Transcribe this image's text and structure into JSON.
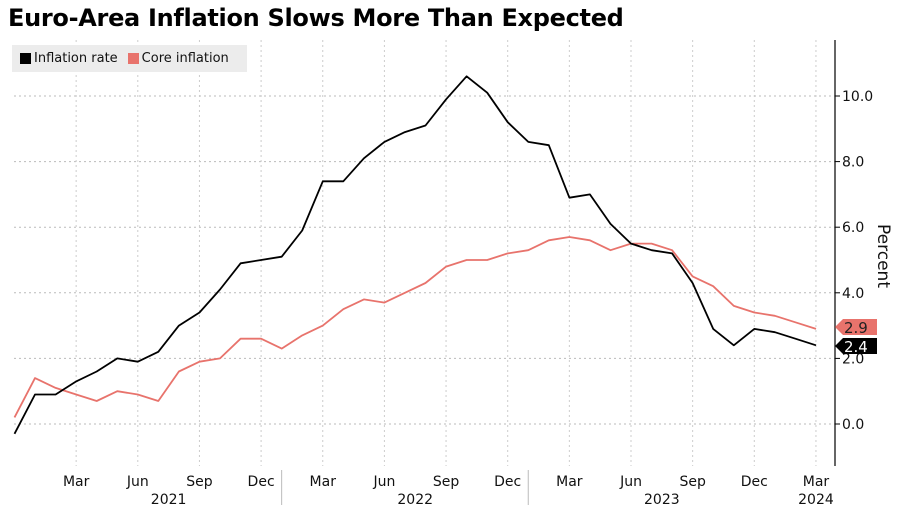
{
  "title": "Euro-Area Inflation Slows More Than Expected",
  "chart_data": {
    "type": "line",
    "title": "Euro-Area Inflation Slows More Than Expected",
    "ylabel": "Percent",
    "xlabel": "",
    "ylim": [
      -1.2,
      11.5
    ],
    "yticks": [
      "10.0",
      "8.0",
      "6.0",
      "4.0",
      "2.0",
      "0.0"
    ],
    "ytick_values": [
      10,
      8,
      6,
      4,
      2,
      0
    ],
    "start_month": "Dec 2020",
    "x_tick_labels": [
      {
        "month_index": 3,
        "label": "Mar"
      },
      {
        "month_index": 6,
        "label": "Jun"
      },
      {
        "month_index": 9,
        "label": "Sep"
      },
      {
        "month_index": 12,
        "label": "Dec"
      },
      {
        "month_index": 15,
        "label": "Mar"
      },
      {
        "month_index": 18,
        "label": "Jun"
      },
      {
        "month_index": 21,
        "label": "Sep"
      },
      {
        "month_index": 24,
        "label": "Dec"
      },
      {
        "month_index": 27,
        "label": "Mar"
      },
      {
        "month_index": 30,
        "label": "Jun"
      },
      {
        "month_index": 33,
        "label": "Sep"
      },
      {
        "month_index": 36,
        "label": "Dec"
      },
      {
        "month_index": 39,
        "label": "Mar"
      }
    ],
    "year_labels": [
      {
        "month_index": 7.5,
        "label": "2021"
      },
      {
        "month_index": 19.5,
        "label": "2022"
      },
      {
        "month_index": 31.5,
        "label": "2023"
      },
      {
        "month_index": 39,
        "label": "2024"
      }
    ],
    "grid": true,
    "legend_position": "top-left",
    "series": [
      {
        "name": "Inflation rate",
        "color": "#000000",
        "last_label": "2.4",
        "values": [
          -0.3,
          0.9,
          0.9,
          1.3,
          1.6,
          2.0,
          1.9,
          2.2,
          3.0,
          3.4,
          4.1,
          4.9,
          5.0,
          5.1,
          5.9,
          7.4,
          7.4,
          8.1,
          8.6,
          8.9,
          9.1,
          9.9,
          10.6,
          10.1,
          9.2,
          8.6,
          8.5,
          6.9,
          7.0,
          6.1,
          5.5,
          5.3,
          5.2,
          4.3,
          2.9,
          2.4,
          2.9,
          2.8,
          2.6,
          2.4
        ]
      },
      {
        "name": "Core inflation",
        "color": "#e8736c",
        "last_label": "2.9",
        "values": [
          0.2,
          1.4,
          1.1,
          0.9,
          0.7,
          1.0,
          0.9,
          0.7,
          1.6,
          1.9,
          2.0,
          2.6,
          2.6,
          2.3,
          2.7,
          3.0,
          3.5,
          3.8,
          3.7,
          4.0,
          4.3,
          4.8,
          5.0,
          5.0,
          5.2,
          5.3,
          5.6,
          5.7,
          5.6,
          5.3,
          5.5,
          5.5,
          5.3,
          4.5,
          4.2,
          3.6,
          3.4,
          3.3,
          3.1,
          2.9
        ]
      }
    ]
  }
}
